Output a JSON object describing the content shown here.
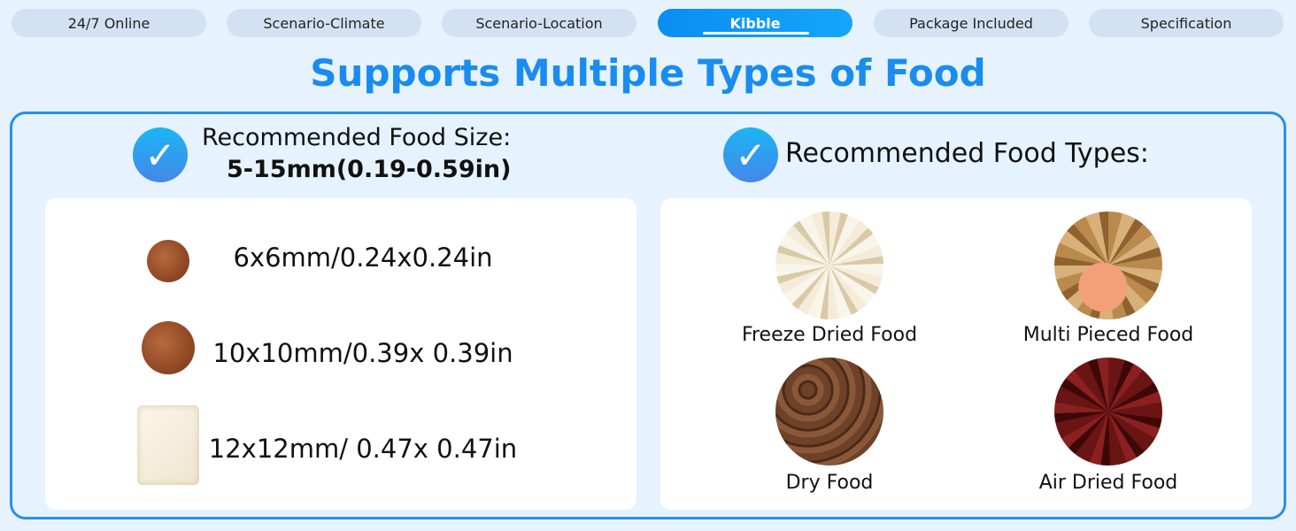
{
  "tabs": [
    {
      "label": "24/7 Online"
    },
    {
      "label": "Scenario-Climate"
    },
    {
      "label": "Scenario-Location"
    },
    {
      "label": "Kibble",
      "active": true
    },
    {
      "label": "Package Included"
    },
    {
      "label": "Specification"
    }
  ],
  "title": "Supports Multiple Types of Food",
  "left": {
    "heading": "Recommended Food Size:",
    "range": "5-15mm(0.19-0.59in)",
    "sizes": [
      "6x6mm/0.24x0.24in",
      "10x10mm/0.39x 0.39in",
      "12x12mm/ 0.47x  0.47in"
    ]
  },
  "right": {
    "heading": "Recommended Food Types:",
    "types": [
      "Freeze Dried Food",
      "Multi Pieced Food",
      "Dry Food",
      "Air Dried Food"
    ]
  },
  "colors": {
    "accent": "#1a8cf0",
    "background": "#e6f2fd",
    "tab_inactive": "#d3e2f2"
  },
  "icons": {
    "check": "check-circle-icon"
  }
}
